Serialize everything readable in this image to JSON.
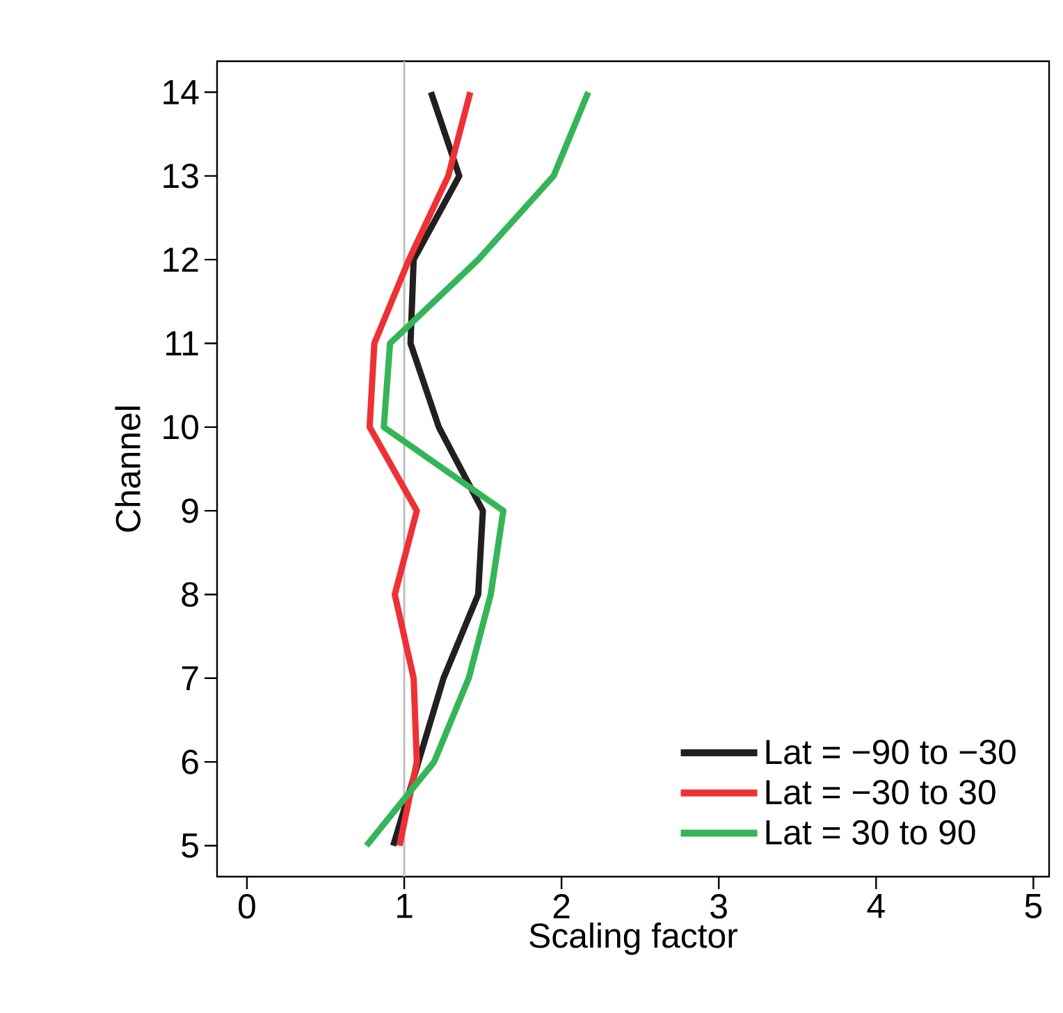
{
  "chart_data": {
    "type": "line",
    "xlabel": "Scaling factor",
    "ylabel": "Channel",
    "xlim": [
      -0.19,
      5.1
    ],
    "xticks": [
      0,
      1,
      2,
      3,
      4,
      5
    ],
    "ylim": [
      4.63,
      14.37
    ],
    "yticks": [
      5,
      6,
      7,
      8,
      9,
      10,
      11,
      12,
      13,
      14
    ],
    "legend": "bottom right",
    "grid": false,
    "marker": "none",
    "line_style": "solid",
    "ref_lines": [
      {
        "axis": "x",
        "value": 1,
        "color": "#bfbfbf"
      }
    ],
    "series": [
      {
        "name": "Lat = −90 to −30",
        "color": "#231f20",
        "x": [
          1.17,
          1.35,
          1.06,
          1.04,
          1.22,
          1.5,
          1.47,
          1.25,
          1.09,
          0.93
        ],
        "values": [
          14,
          13,
          12,
          11,
          10,
          9,
          8,
          7,
          6,
          5
        ]
      },
      {
        "name": "Lat = −30 to 30",
        "color": "#ee3135",
        "x": [
          1.42,
          1.28,
          1.03,
          0.81,
          0.78,
          1.08,
          0.94,
          1.06,
          1.08,
          0.97
        ],
        "values": [
          14,
          13,
          12,
          11,
          10,
          9,
          8,
          7,
          6,
          5
        ]
      },
      {
        "name": "Lat = 30 to 90",
        "color": "#35b558",
        "x": [
          2.17,
          1.95,
          1.47,
          0.91,
          0.87,
          1.63,
          1.55,
          1.41,
          1.19,
          0.76
        ],
        "values": [
          14,
          13,
          12,
          11,
          10,
          9,
          8,
          7,
          6,
          5
        ]
      }
    ]
  }
}
